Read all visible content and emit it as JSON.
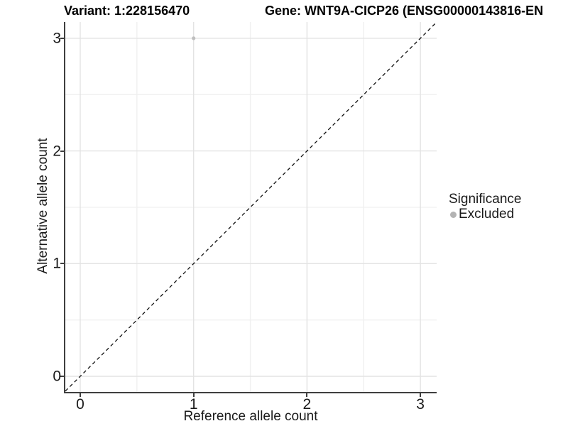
{
  "title": {
    "left": "Variant: 1:228156470",
    "right": "Gene: WNT9A-CICP26 (ENSG00000143816-EN"
  },
  "legend": {
    "title": "Significance",
    "items": [
      {
        "label": "Excluded",
        "color": "#b3b3b3"
      }
    ]
  },
  "colors": {
    "background": "#ffffff",
    "grid_major": "#e3e3e3",
    "grid_minor": "#f0f0f0",
    "axis_line": "#3f3f3f",
    "tick_label": "#1a1a1a",
    "reference_line": "#111111",
    "point": "#bfbfbf"
  },
  "chart_data": {
    "type": "scatter",
    "title": "Variant: 1:228156470   Gene: WNT9A-CICP26 (ENSG00000143816-EN",
    "xlabel": "Reference allele count",
    "ylabel": "Alternative allele count",
    "xlim": [
      -0.1315,
      3.1441
    ],
    "ylim": [
      -0.1449,
      3.1449
    ],
    "x_ticks": [
      0,
      1,
      2,
      3
    ],
    "y_ticks": [
      0,
      1,
      2,
      3
    ],
    "x_minor_ticks": [
      0.5,
      1.5,
      2.5
    ],
    "y_minor_ticks": [
      0.5,
      1.5,
      2.5
    ],
    "grid": true,
    "legend_position": "right",
    "series": [
      {
        "name": "Excluded",
        "color": "#bfbfbf",
        "points": [
          {
            "x": 1,
            "y": 3
          }
        ]
      }
    ],
    "reference_line": {
      "type": "identity",
      "slope": 1,
      "intercept": 0,
      "style": "dashed",
      "color": "#111111"
    }
  }
}
